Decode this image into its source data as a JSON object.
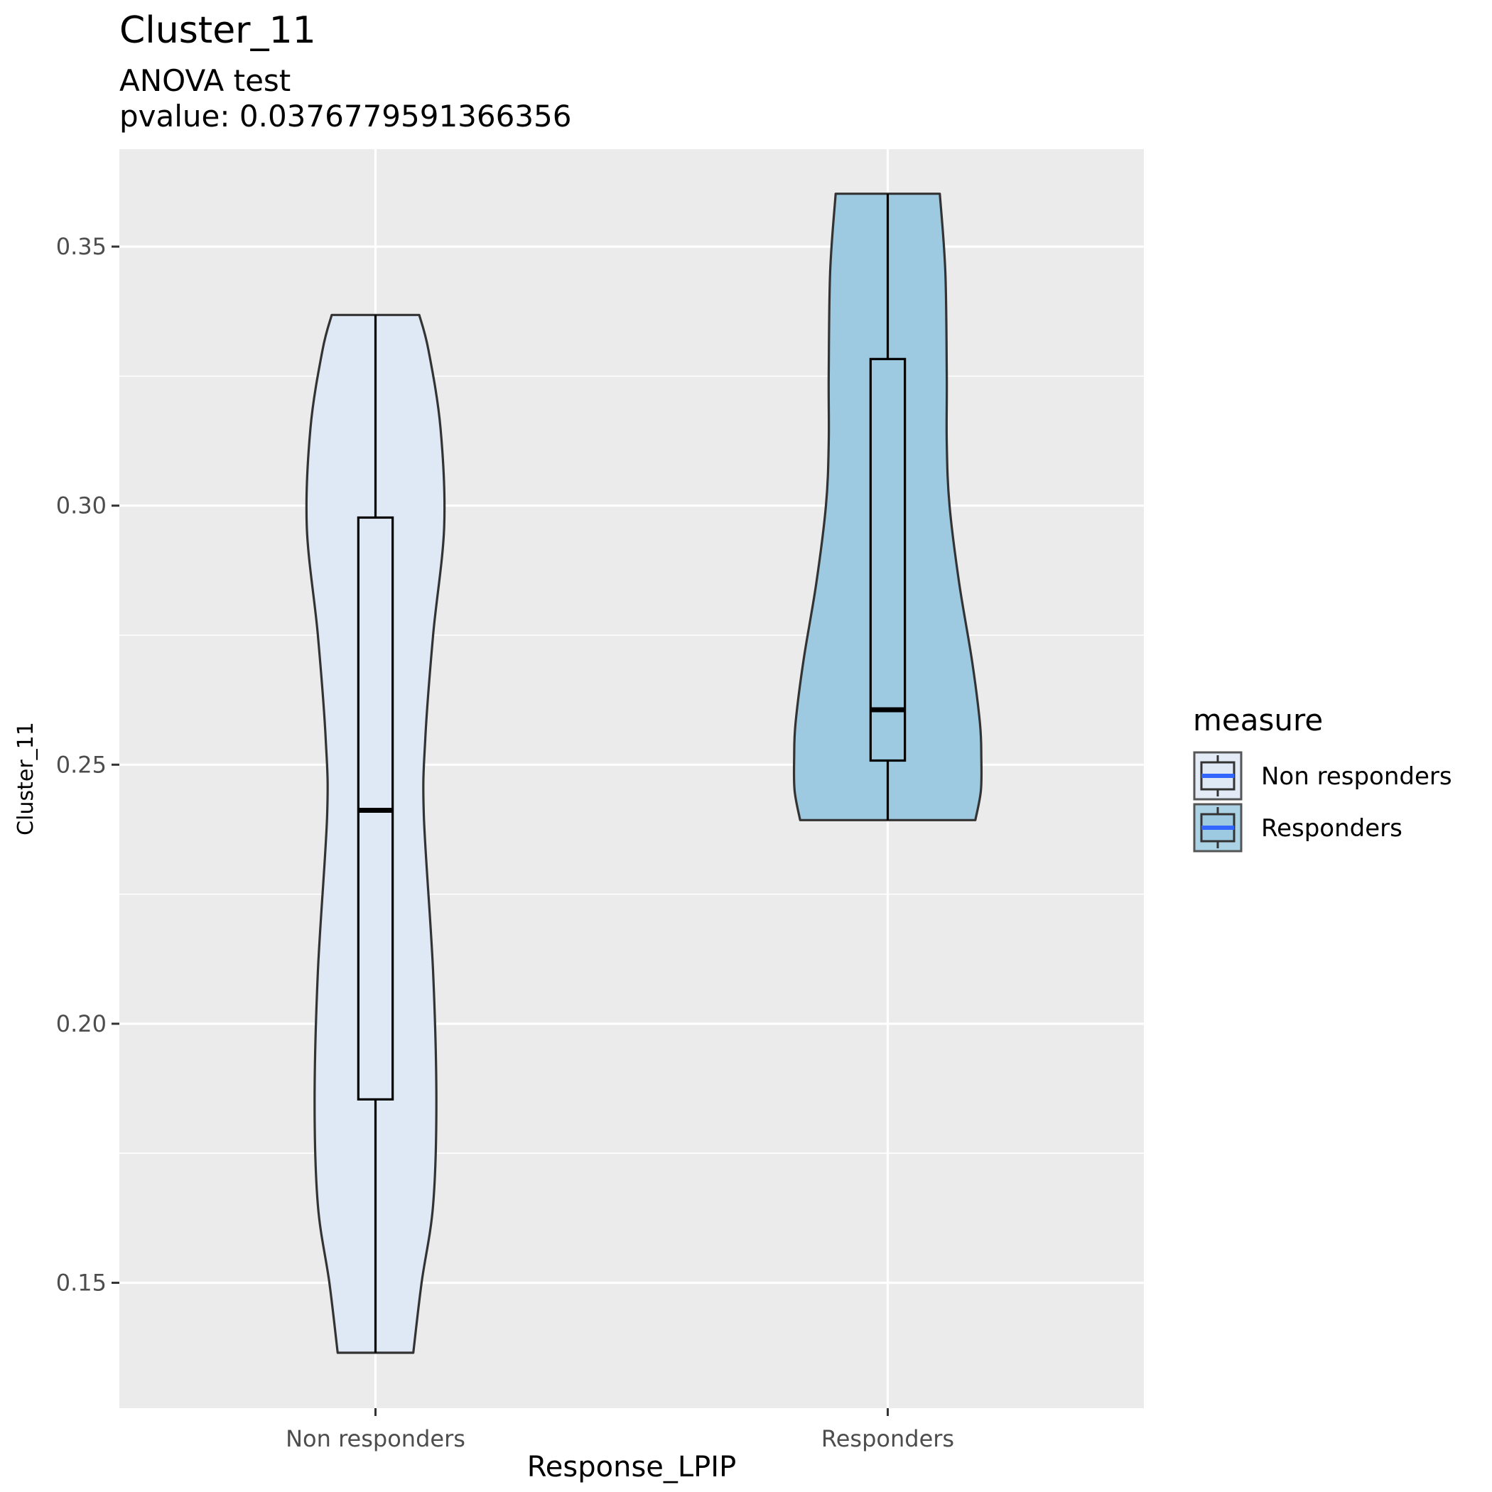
{
  "chart_data": {
    "type": "violin",
    "title": "Cluster_11",
    "subtitle_lines": [
      "ANOVA test",
      "pvalue: 0.0376779591366356"
    ],
    "xlabel": "Response_LPIP",
    "ylabel": "Cluster_11",
    "categories": [
      "Non responders",
      "Responders"
    ],
    "ylim": [
      0.1258,
      0.3688
    ],
    "yticks": [
      0.15,
      0.2,
      0.25,
      0.3,
      0.35
    ],
    "ytick_labels": [
      "0.15",
      "0.20",
      "0.25",
      "0.30",
      "0.35"
    ],
    "grid": true,
    "legend": {
      "title": "measure",
      "position": "right",
      "entries": [
        "Non responders",
        "Responders"
      ]
    },
    "series": [
      {
        "name": "Non responders",
        "fill": "#dee9f5",
        "box": {
          "min": 0.1365,
          "q1": 0.1854,
          "median": 0.2412,
          "q3": 0.2977,
          "max": 0.3368
        },
        "violin_profile": [
          [
            0.1365,
            0.082
          ],
          [
            0.15,
            0.1
          ],
          [
            0.165,
            0.125
          ],
          [
            0.185,
            0.132
          ],
          [
            0.21,
            0.125
          ],
          [
            0.24,
            0.105
          ],
          [
            0.255,
            0.108
          ],
          [
            0.275,
            0.125
          ],
          [
            0.296,
            0.149
          ],
          [
            0.315,
            0.141
          ],
          [
            0.33,
            0.115
          ],
          [
            0.3368,
            0.095
          ]
        ]
      },
      {
        "name": "Responders",
        "fill": "#9ecae1",
        "box": {
          "min": 0.2393,
          "q1": 0.2508,
          "median": 0.2606,
          "q3": 0.3283,
          "max": 0.3602
        },
        "violin_profile": [
          [
            0.2393,
            0.19
          ],
          [
            0.245,
            0.202
          ],
          [
            0.2515,
            0.203
          ],
          [
            0.258,
            0.2
          ],
          [
            0.27,
            0.183
          ],
          [
            0.285,
            0.155
          ],
          [
            0.3,
            0.134
          ],
          [
            0.312,
            0.128
          ],
          [
            0.325,
            0.128
          ],
          [
            0.345,
            0.125
          ],
          [
            0.3602,
            0.113
          ]
        ]
      }
    ]
  }
}
